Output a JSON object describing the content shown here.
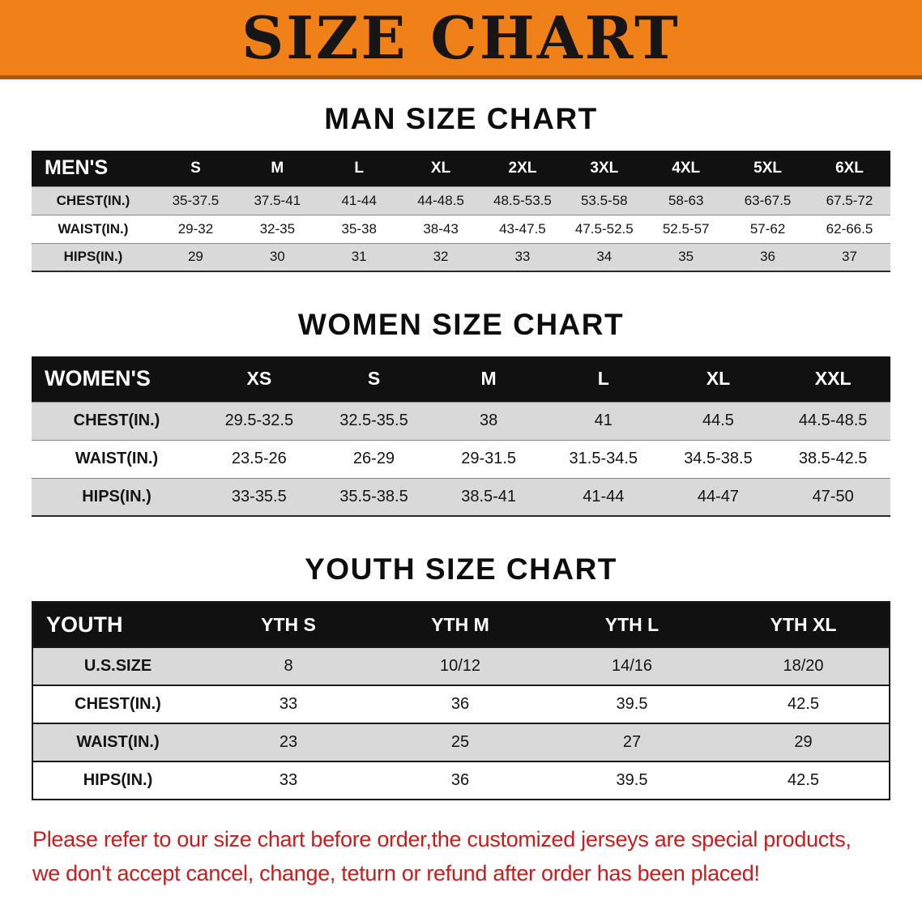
{
  "banner": {
    "title": "SIZE CHART"
  },
  "sections": [
    {
      "heading": "MAN SIZE CHART",
      "table": {
        "header_label": "MEN'S",
        "columns": [
          "S",
          "M",
          "L",
          "XL",
          "2XL",
          "3XL",
          "4XL",
          "5XL",
          "6XL"
        ],
        "rows": [
          {
            "label": "CHEST(IN.)",
            "values": [
              "35-37.5",
              "37.5-41",
              "41-44",
              "44-48.5",
              "48.5-53.5",
              "53.5-58",
              "58-63",
              "63-67.5",
              "67.5-72"
            ]
          },
          {
            "label": "WAIST(IN.)",
            "values": [
              "29-32",
              "32-35",
              "35-38",
              "38-43",
              "43-47.5",
              "47.5-52.5",
              "52.5-57",
              "57-62",
              "62-66.5"
            ]
          },
          {
            "label": "HIPS(IN.)",
            "values": [
              "29",
              "30",
              "31",
              "32",
              "33",
              "34",
              "35",
              "36",
              "37"
            ]
          }
        ]
      }
    },
    {
      "heading": "WOMEN SIZE CHART",
      "table": {
        "header_label": "WOMEN'S",
        "columns": [
          "XS",
          "S",
          "M",
          "L",
          "XL",
          "XXL"
        ],
        "rows": [
          {
            "label": "CHEST(IN.)",
            "values": [
              "29.5-32.5",
              "32.5-35.5",
              "38",
              "41",
              "44.5",
              "44.5-48.5"
            ]
          },
          {
            "label": "WAIST(IN.)",
            "values": [
              "23.5-26",
              "26-29",
              "29-31.5",
              "31.5-34.5",
              "34.5-38.5",
              "38.5-42.5"
            ]
          },
          {
            "label": "HIPS(IN.)",
            "values": [
              "33-35.5",
              "35.5-38.5",
              "38.5-41",
              "41-44",
              "44-47",
              "47-50"
            ]
          }
        ]
      }
    },
    {
      "heading": "YOUTH SIZE CHART",
      "table": {
        "header_label": "YOUTH",
        "columns": [
          "YTH S",
          "YTH M",
          "YTH L",
          "YTH XL"
        ],
        "rows": [
          {
            "label": "U.S.SIZE",
            "values": [
              "8",
              "10/12",
              "14/16",
              "18/20"
            ]
          },
          {
            "label": "CHEST(IN.)",
            "values": [
              "33",
              "36",
              "39.5",
              "42.5"
            ]
          },
          {
            "label": "WAIST(IN.)",
            "values": [
              "23",
              "25",
              "27",
              "29"
            ]
          },
          {
            "label": "HIPS(IN.)",
            "values": [
              "33",
              "36",
              "39.5",
              "42.5"
            ]
          }
        ]
      }
    }
  ],
  "footer_note": {
    "line1": "Please refer to our size chart before order,the customized jerseys are special products,",
    "line2": "we don't accept cancel, change, teturn or refund after order has been placed!"
  },
  "colors": {
    "banner_bg": "#F08018",
    "banner_text": "#161616",
    "table_header_bg": "#111111",
    "table_header_text": "#ffffff",
    "shaded_row_bg": "#d9d9d9",
    "note_text": "#cc1b1b"
  }
}
